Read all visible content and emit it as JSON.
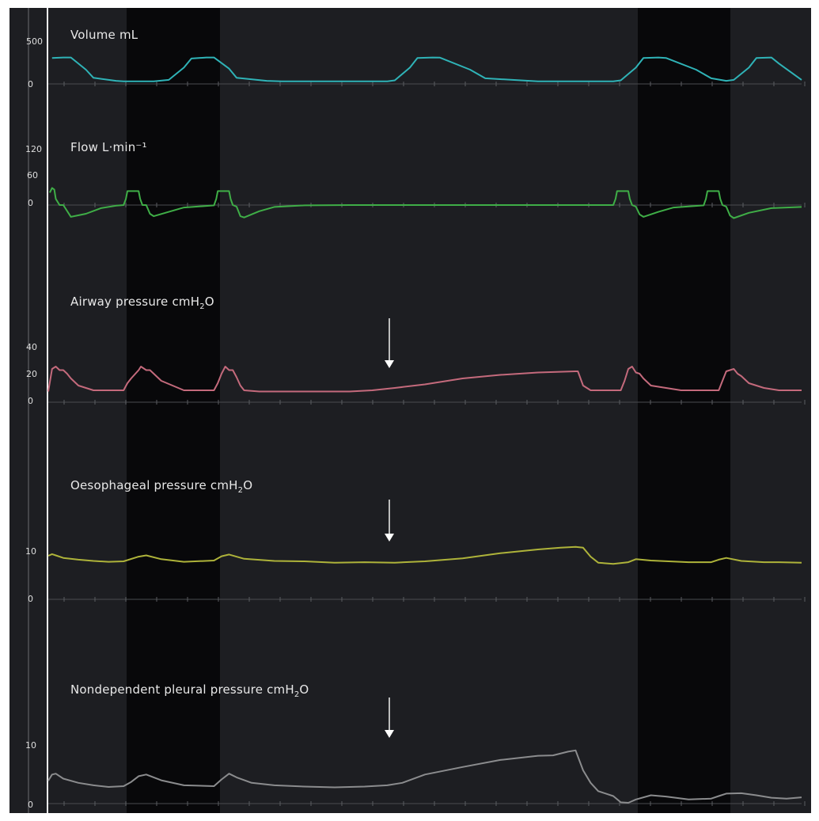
{
  "colors": {
    "panel_bg": "#1d1e22",
    "shaded_band": "#08080a",
    "baseline": "#4a4c50",
    "volume": "#2fb3b7",
    "flow": "#3fae47",
    "airway": "#c46a7c",
    "oesophageal": "#aeb33a",
    "pleural": "#8b8c8e",
    "arrow": "#ffffff"
  },
  "chart_data": [
    {
      "type": "line",
      "title": "Volume mL",
      "ylim": [
        -40,
        560
      ],
      "yticks": [
        "500",
        "0"
      ],
      "series": [
        {
          "color": "#2fb3b7",
          "x": [
            0.5,
            2,
            3,
            5,
            6,
            9,
            10,
            14,
            16,
            18,
            19,
            21,
            22,
            24,
            25,
            29,
            31,
            45,
            46,
            48,
            49,
            51,
            52,
            56,
            58,
            65,
            70,
            75,
            76,
            78,
            79,
            81,
            82,
            86,
            88,
            90,
            91,
            93,
            94,
            96,
            97,
            100
          ],
          "values": [
            255,
            260,
            260,
            140,
            60,
            30,
            25,
            25,
            40,
            160,
            250,
            260,
            260,
            150,
            60,
            30,
            25,
            25,
            35,
            160,
            255,
            260,
            258,
            140,
            55,
            25,
            25,
            25,
            35,
            160,
            255,
            260,
            255,
            140,
            55,
            30,
            40,
            160,
            255,
            260,
            200,
            40
          ]
        }
      ]
    },
    {
      "type": "line",
      "title": "Flow L·min⁻¹",
      "ylim": [
        -60,
        125
      ],
      "yticks": [
        "120",
        "60",
        "0"
      ],
      "series": [
        {
          "color": "#3fae47",
          "x": [
            0.2,
            0.5,
            0.8,
            1,
            1.5,
            2,
            3,
            5,
            7,
            9,
            10,
            10.3,
            10.5,
            11,
            12,
            12.2,
            12.5,
            13,
            13.5,
            14,
            16,
            18,
            22,
            22.3,
            22.5,
            23,
            24,
            24.2,
            24.5,
            25,
            25.5,
            26,
            28,
            30,
            34,
            40,
            50,
            60,
            70,
            75,
            75.3,
            75.5,
            76.5,
            77,
            77.2,
            77.5,
            78,
            78.5,
            79,
            81,
            83,
            87,
            87.3,
            87.5,
            88.5,
            89,
            89.2,
            89.5,
            90,
            90.5,
            91,
            93,
            96,
            100
          ],
          "values": [
            40,
            55,
            50,
            20,
            0,
            0,
            -38,
            -28,
            -10,
            -2,
            0,
            20,
            45,
            45,
            45,
            20,
            0,
            0,
            -28,
            -36,
            -22,
            -8,
            -1,
            20,
            45,
            45,
            45,
            20,
            0,
            -5,
            -36,
            -40,
            -20,
            -6,
            -1,
            0,
            0,
            0,
            0,
            0,
            20,
            45,
            45,
            45,
            20,
            0,
            -5,
            -30,
            -38,
            -22,
            -8,
            -1,
            20,
            45,
            45,
            45,
            20,
            0,
            -5,
            -34,
            -42,
            -25,
            -10,
            -6
          ]
        }
      ]
    },
    {
      "type": "line",
      "title": "Airway pressure cmH₂O",
      "ylim": [
        -2,
        52
      ],
      "yticks": [
        "40",
        "20",
        "0"
      ],
      "series": [
        {
          "color": "#c46a7c",
          "x": [
            0,
            0.5,
            1,
            1.5,
            2,
            2.5,
            3,
            4,
            6,
            8,
            10,
            10.5,
            11,
            12,
            12.3,
            13,
            13.5,
            14,
            15,
            18,
            21,
            22,
            22.5,
            23,
            23.5,
            24,
            24.5,
            25,
            25.5,
            26,
            28,
            32,
            36,
            40,
            43,
            46,
            50,
            55,
            60,
            65,
            70,
            70.3,
            71,
            72,
            75,
            76,
            76.5,
            77,
            77.5,
            78,
            78.5,
            79,
            80,
            84,
            88,
            89,
            89.5,
            90,
            91,
            91.5,
            92,
            93,
            95,
            97,
            100
          ],
          "values": [
            9,
            28,
            30,
            27,
            27,
            24,
            20,
            14,
            10,
            10,
            10,
            16,
            20,
            27,
            30,
            27,
            27,
            24,
            18,
            10,
            10,
            10,
            16,
            24,
            30,
            27,
            27,
            21,
            14,
            10,
            9,
            9,
            9,
            9,
            10,
            12,
            15,
            20,
            23,
            25,
            26,
            26,
            14,
            10,
            10,
            10,
            18,
            28,
            30,
            25,
            24,
            20,
            14,
            10,
            10,
            10,
            18,
            26,
            28,
            24,
            22,
            16,
            12,
            10,
            10
          ]
        }
      ]
    },
    {
      "type": "line",
      "title": "Oesophageal pressure cmH₂O",
      "ylim": [
        -1,
        18
      ],
      "yticks": [
        "10",
        "0"
      ],
      "series": [
        {
          "color": "#aeb33a",
          "x": [
            0,
            0.5,
            1,
            2,
            4,
            6,
            8,
            10,
            12,
            13,
            15,
            18,
            22,
            23,
            24,
            26,
            30,
            34,
            38,
            42,
            46,
            50,
            55,
            60,
            65,
            68,
            70,
            71,
            72,
            73,
            75,
            77,
            78,
            80,
            85,
            88,
            89,
            90,
            92,
            95,
            97,
            100
          ],
          "values": [
            10.2,
            10.6,
            10.3,
            9.7,
            9.3,
            9,
            8.8,
            8.9,
            10,
            10.3,
            9.4,
            8.8,
            9.1,
            10.1,
            10.5,
            9.5,
            9,
            8.9,
            8.6,
            8.7,
            8.6,
            8.9,
            9.6,
            10.8,
            11.7,
            12.1,
            12.3,
            12.1,
            10,
            8.6,
            8.3,
            8.7,
            9.4,
            9.1,
            8.7,
            8.7,
            9.3,
            9.7,
            9,
            8.7,
            8.7,
            8.6
          ]
        }
      ]
    },
    {
      "type": "line",
      "title": "Nondependent pleural pressure cmH₂O",
      "ylim": [
        -0.5,
        20
      ],
      "yticks": [
        "10",
        "0"
      ],
      "series": [
        {
          "color": "#8b8c8e",
          "x": [
            0,
            0.5,
            1,
            2,
            4,
            6,
            8,
            10,
            11,
            12,
            13,
            15,
            18,
            22,
            23,
            24,
            25,
            27,
            30,
            34,
            38,
            42,
            45,
            47,
            50,
            55,
            60,
            65,
            67,
            69,
            70,
            71,
            72,
            73,
            75,
            76,
            77,
            78,
            80,
            82,
            85,
            88,
            89,
            90,
            92,
            94,
            96,
            98,
            100
          ],
          "values": [
            5.5,
            7,
            7.2,
            6,
            5,
            4.4,
            4,
            4.2,
            5.2,
            6.6,
            7,
            5.6,
            4.4,
            4.2,
            5.8,
            7.2,
            6.3,
            5,
            4.4,
            4.1,
            3.9,
            4.1,
            4.4,
            5,
            7,
            8.8,
            10.5,
            11.5,
            11.6,
            12.5,
            12.8,
            8,
            5,
            3,
            1.8,
            0.3,
            0.2,
            1,
            2,
            1.7,
            1,
            1.2,
            1.8,
            2.4,
            2.5,
            2,
            1.4,
            1.2,
            1.5
          ]
        }
      ]
    }
  ]
}
